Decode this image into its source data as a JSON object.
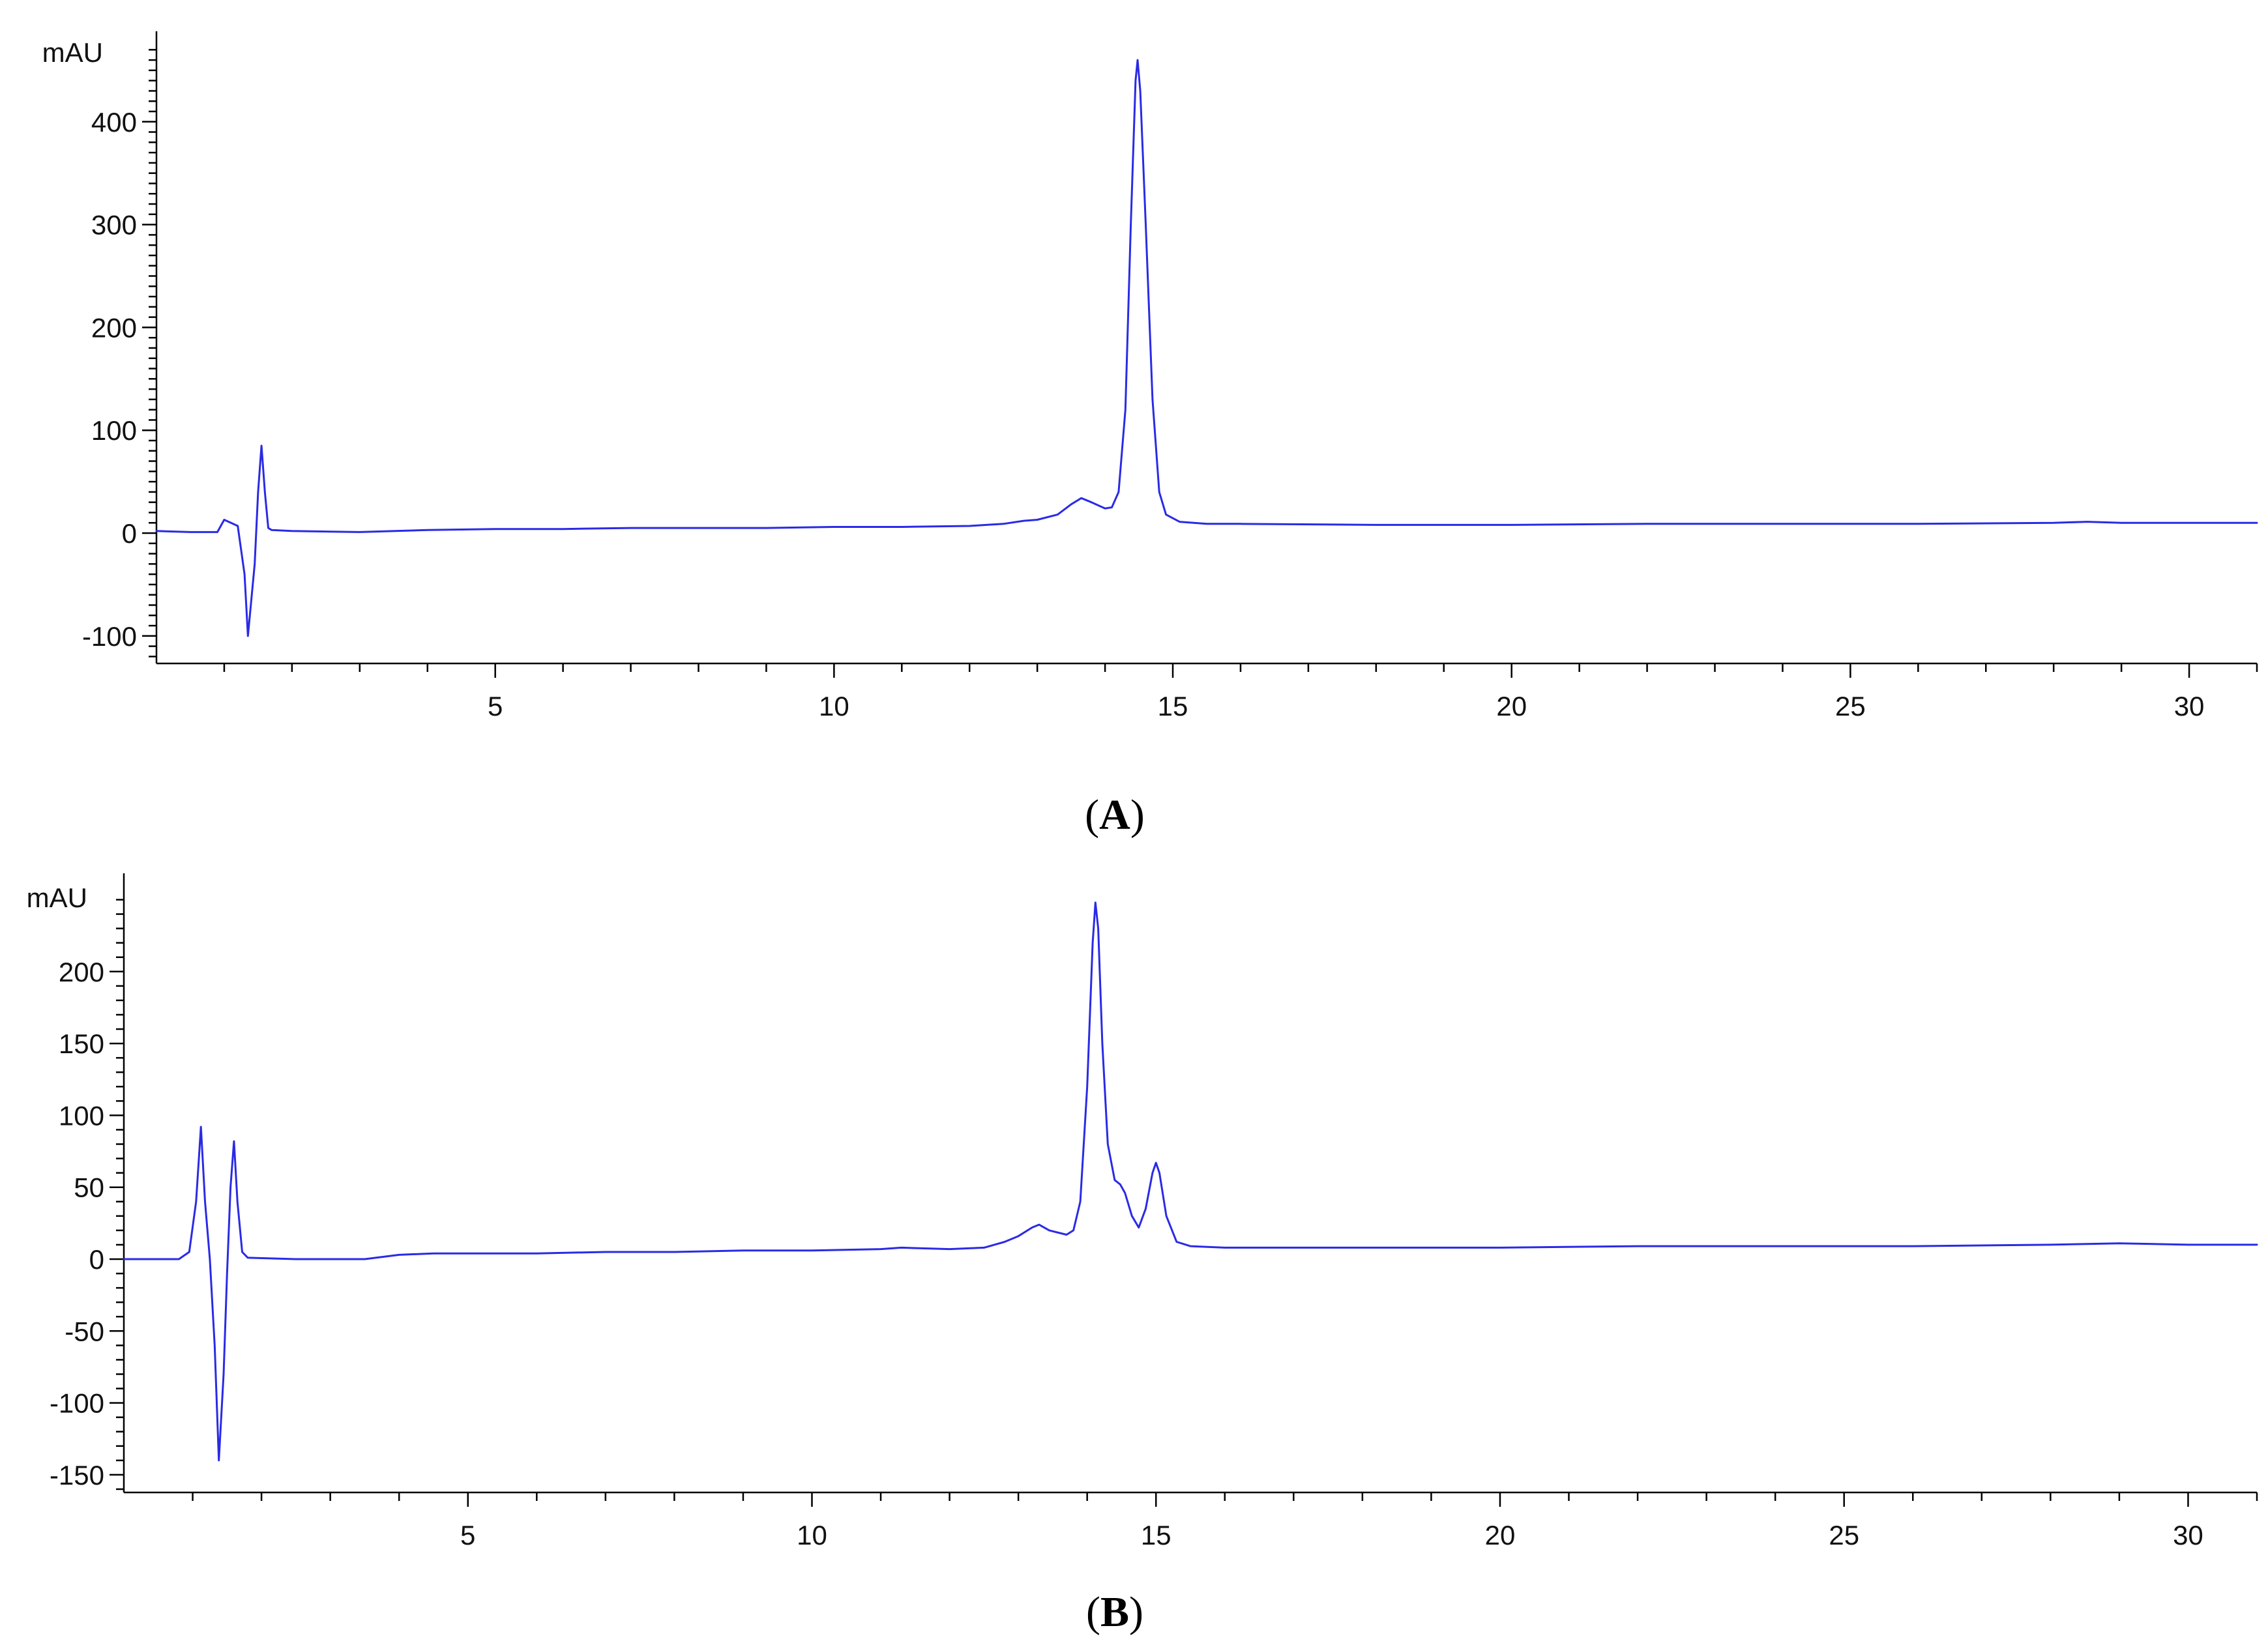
{
  "colors": {
    "trace": "#2a2ae6",
    "axis": "#000000",
    "background": "#ffffff"
  },
  "chart_data": [
    {
      "type": "line",
      "panel_label": "A",
      "title": "",
      "xlabel": "",
      "ylabel": "mAU",
      "xlim": [
        0,
        31
      ],
      "ylim": [
        -130,
        470
      ],
      "x_major_ticks": [
        5,
        10,
        15,
        20,
        25,
        30
      ],
      "y_major_ticks": [
        -100,
        0,
        100,
        200,
        300,
        400
      ],
      "grid": false,
      "legend": "none",
      "series": [
        {
          "points": [
            [
              0.0,
              2
            ],
            [
              0.5,
              1
            ],
            [
              0.9,
              1
            ],
            [
              1.0,
              13
            ],
            [
              1.1,
              10
            ],
            [
              1.2,
              7
            ],
            [
              1.3,
              -40
            ],
            [
              1.35,
              -100
            ],
            [
              1.45,
              -30
            ],
            [
              1.5,
              40
            ],
            [
              1.55,
              85
            ],
            [
              1.6,
              40
            ],
            [
              1.65,
              5
            ],
            [
              1.7,
              3
            ],
            [
              2.0,
              2
            ],
            [
              3.0,
              1
            ],
            [
              4.0,
              3
            ],
            [
              5.0,
              4
            ],
            [
              6.0,
              4
            ],
            [
              7.0,
              5
            ],
            [
              8.0,
              5
            ],
            [
              9.0,
              5
            ],
            [
              10.0,
              6
            ],
            [
              11.0,
              6
            ],
            [
              12.0,
              7
            ],
            [
              12.5,
              9
            ],
            [
              12.8,
              12
            ],
            [
              13.0,
              13
            ],
            [
              13.3,
              18
            ],
            [
              13.5,
              28
            ],
            [
              13.65,
              34
            ],
            [
              13.8,
              30
            ],
            [
              14.0,
              24
            ],
            [
              14.1,
              25
            ],
            [
              14.2,
              40
            ],
            [
              14.3,
              120
            ],
            [
              14.38,
              300
            ],
            [
              14.45,
              440
            ],
            [
              14.48,
              460
            ],
            [
              14.52,
              430
            ],
            [
              14.6,
              300
            ],
            [
              14.7,
              130
            ],
            [
              14.8,
              40
            ],
            [
              14.9,
              18
            ],
            [
              15.1,
              11
            ],
            [
              15.5,
              9
            ],
            [
              16.0,
              9
            ],
            [
              18.0,
              8
            ],
            [
              20.0,
              8
            ],
            [
              22.0,
              9
            ],
            [
              24.0,
              9
            ],
            [
              26.0,
              9
            ],
            [
              28.0,
              10
            ],
            [
              28.5,
              11
            ],
            [
              29.0,
              10
            ],
            [
              30.0,
              10
            ],
            [
              31.0,
              10
            ]
          ]
        }
      ]
    },
    {
      "type": "line",
      "panel_label": "B",
      "title": "",
      "xlabel": "",
      "ylabel": "mAU",
      "xlim": [
        0,
        31
      ],
      "ylim": [
        -160,
        250
      ],
      "x_major_ticks": [
        5,
        10,
        15,
        20,
        25,
        30
      ],
      "y_major_ticks": [
        -150,
        -100,
        -50,
        0,
        50,
        100,
        150,
        200
      ],
      "grid": false,
      "legend": "none",
      "series": [
        {
          "points": [
            [
              0.0,
              0
            ],
            [
              0.5,
              0
            ],
            [
              0.8,
              0
            ],
            [
              0.95,
              5
            ],
            [
              1.05,
              40
            ],
            [
              1.12,
              92
            ],
            [
              1.18,
              40
            ],
            [
              1.25,
              0
            ],
            [
              1.32,
              -60
            ],
            [
              1.38,
              -140
            ],
            [
              1.45,
              -80
            ],
            [
              1.5,
              -10
            ],
            [
              1.55,
              50
            ],
            [
              1.6,
              82
            ],
            [
              1.65,
              40
            ],
            [
              1.72,
              5
            ],
            [
              1.8,
              1
            ],
            [
              2.5,
              0
            ],
            [
              3.5,
              0
            ],
            [
              4.0,
              3
            ],
            [
              4.5,
              4
            ],
            [
              5.0,
              4
            ],
            [
              6.0,
              4
            ],
            [
              7.0,
              5
            ],
            [
              8.0,
              5
            ],
            [
              9.0,
              6
            ],
            [
              10.0,
              6
            ],
            [
              11.0,
              7
            ],
            [
              11.3,
              8
            ],
            [
              12.0,
              7
            ],
            [
              12.5,
              8
            ],
            [
              12.8,
              12
            ],
            [
              13.0,
              16
            ],
            [
              13.2,
              22
            ],
            [
              13.3,
              24
            ],
            [
              13.45,
              20
            ],
            [
              13.7,
              17
            ],
            [
              13.8,
              20
            ],
            [
              13.9,
              40
            ],
            [
              14.0,
              120
            ],
            [
              14.08,
              220
            ],
            [
              14.12,
              248
            ],
            [
              14.16,
              230
            ],
            [
              14.22,
              150
            ],
            [
              14.3,
              80
            ],
            [
              14.4,
              55
            ],
            [
              14.48,
              52
            ],
            [
              14.55,
              46
            ],
            [
              14.65,
              30
            ],
            [
              14.75,
              22
            ],
            [
              14.85,
              35
            ],
            [
              14.95,
              60
            ],
            [
              15.0,
              67
            ],
            [
              15.05,
              60
            ],
            [
              15.15,
              30
            ],
            [
              15.3,
              12
            ],
            [
              15.5,
              9
            ],
            [
              16.0,
              8
            ],
            [
              17.0,
              8
            ],
            [
              19.0,
              8
            ],
            [
              20.0,
              8
            ],
            [
              22.0,
              9
            ],
            [
              24.0,
              9
            ],
            [
              26.0,
              9
            ],
            [
              28.0,
              10
            ],
            [
              29.0,
              11
            ],
            [
              30.0,
              10
            ],
            [
              31.0,
              10
            ]
          ]
        }
      ]
    }
  ]
}
